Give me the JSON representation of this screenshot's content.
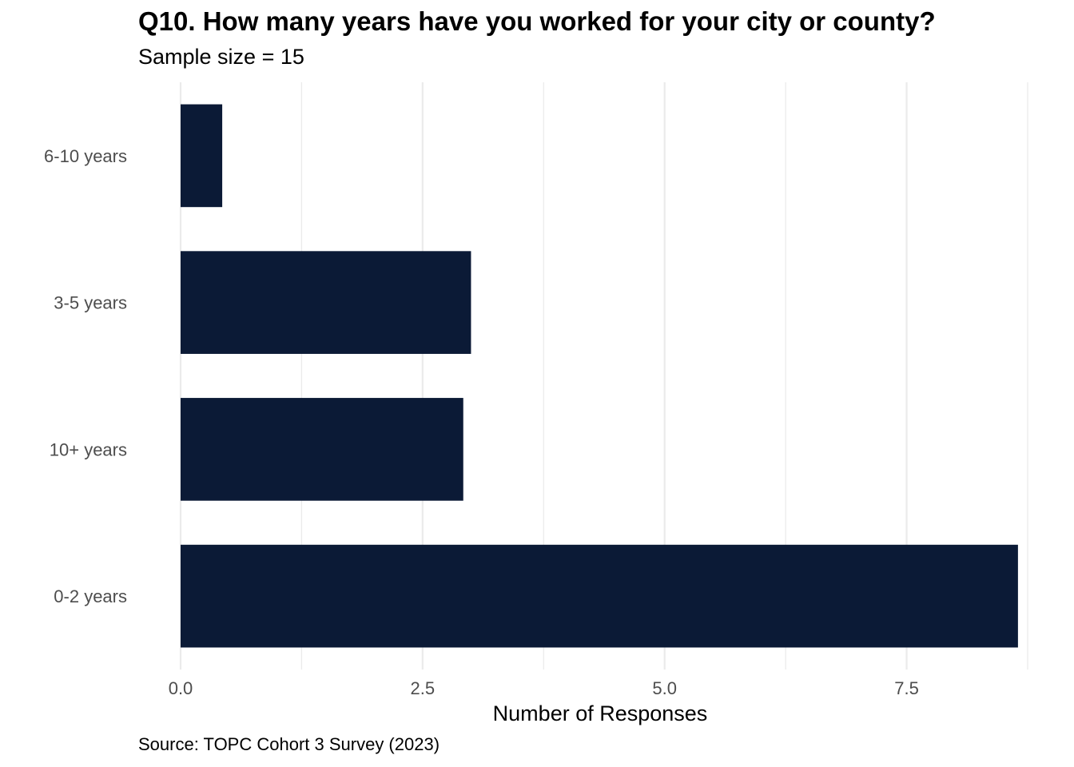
{
  "chart_data": {
    "type": "bar",
    "orientation": "horizontal",
    "title": "Q10. How many years have you worked for your city or county?",
    "subtitle": "Sample size = 15",
    "caption": "Source: TOPC Cohort 3 Survey (2023)",
    "xlabel": "Number of Responses",
    "ylabel": "",
    "categories": [
      "6-10 years",
      "3-5 years",
      "10+ years",
      "0-2 years"
    ],
    "values": [
      0.43,
      3.0,
      2.92,
      8.65
    ],
    "xlim": [
      0,
      8.75
    ],
    "xticks": [
      0,
      2.5,
      5,
      7.5
    ],
    "xtick_labels": [
      "0.0",
      "2.5",
      "5.0",
      "7.5"
    ],
    "grid": true,
    "bar_color": "#0b1a36",
    "grid_color": "#ebebeb"
  }
}
